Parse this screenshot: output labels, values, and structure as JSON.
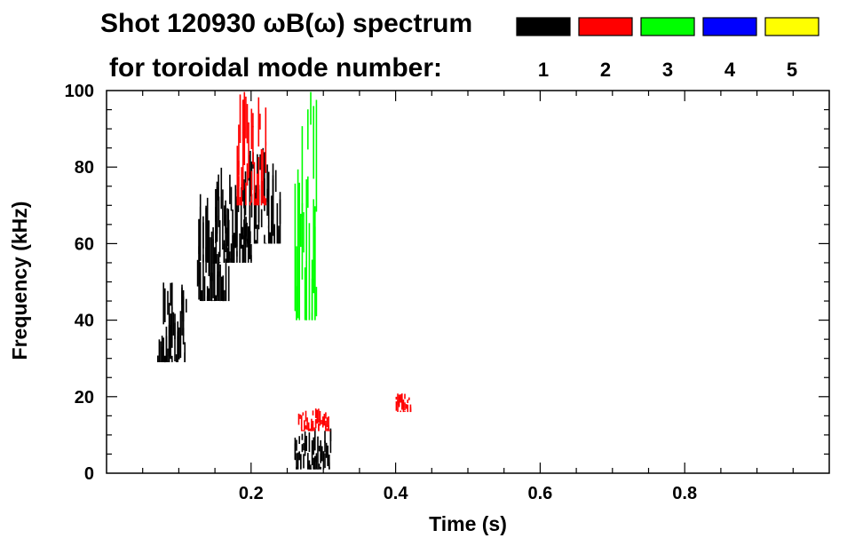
{
  "chart_data": {
    "type": "heatmap",
    "title_line1": "Shot 120930 ωB(ω) spectrum",
    "title_line2": "for toroidal mode number:",
    "xlabel": "Time (s)",
    "ylabel": "Frequency (kHz)",
    "xlim": [
      0.0,
      1.0
    ],
    "ylim": [
      0,
      100
    ],
    "x_ticks": [
      {
        "value": 0.2,
        "label": "0.2"
      },
      {
        "value": 0.4,
        "label": "0.4"
      },
      {
        "value": 0.6,
        "label": "0.6"
      },
      {
        "value": 0.8,
        "label": "0.8"
      }
    ],
    "y_ticks": [
      {
        "value": 0,
        "label": "0"
      },
      {
        "value": 20,
        "label": "20"
      },
      {
        "value": 40,
        "label": "40"
      },
      {
        "value": 60,
        "label": "60"
      },
      {
        "value": 80,
        "label": "80"
      },
      {
        "value": 100,
        "label": "100"
      }
    ],
    "legend": [
      {
        "mode": "1",
        "color": "#000000"
      },
      {
        "mode": "2",
        "color": "#ff0000"
      },
      {
        "mode": "3",
        "color": "#00ff00"
      },
      {
        "mode": "4",
        "color": "#0000ff"
      },
      {
        "mode": "5",
        "color": "#ffff00"
      }
    ],
    "regions": [
      {
        "mode": "1",
        "t": [
          0.07,
          0.11
        ],
        "f": [
          29,
          51
        ]
      },
      {
        "mode": "1",
        "t": [
          0.125,
          0.17
        ],
        "f": [
          45,
          73
        ]
      },
      {
        "mode": "1",
        "t": [
          0.15,
          0.2
        ],
        "f": [
          55,
          80
        ]
      },
      {
        "mode": "1",
        "t": [
          0.19,
          0.24
        ],
        "f": [
          60,
          85
        ]
      },
      {
        "mode": "1",
        "t": [
          0.26,
          0.31
        ],
        "f": [
          1,
          12
        ]
      },
      {
        "mode": "2",
        "t": [
          0.265,
          0.31
        ],
        "f": [
          11,
          17
        ]
      },
      {
        "mode": "2",
        "t": [
          0.18,
          0.22
        ],
        "f": [
          70,
          100
        ]
      },
      {
        "mode": "3",
        "t": [
          0.26,
          0.29
        ],
        "f": [
          40,
          100
        ]
      },
      {
        "mode": "2",
        "t": [
          0.4,
          0.42
        ],
        "f": [
          16,
          21
        ]
      }
    ]
  }
}
